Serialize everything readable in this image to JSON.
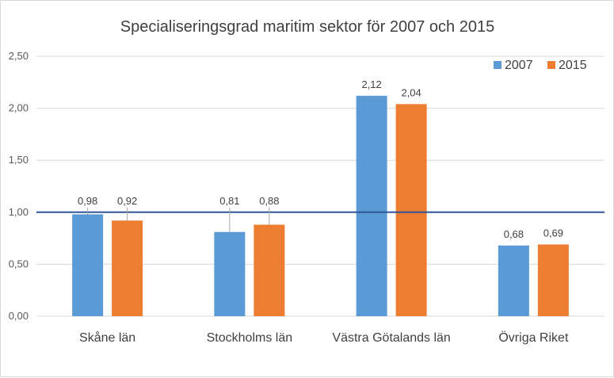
{
  "chart_data": {
    "type": "bar",
    "title": "Specialiseringsgrad maritim sektor för 2007 och 2015",
    "xlabel": "",
    "ylabel": "",
    "categories": [
      "Skåne län",
      "Stockholms län",
      "Västra Götalands län",
      "Övriga Riket"
    ],
    "series": [
      {
        "name": "2007",
        "color": "#5b9bd5",
        "values": [
          0.98,
          0.81,
          2.12,
          0.68
        ],
        "labels": [
          "0,98",
          "0,81",
          "2,12",
          "0,68"
        ]
      },
      {
        "name": "2015",
        "color": "#ed7d31",
        "values": [
          0.92,
          0.88,
          2.04,
          0.69
        ],
        "labels": [
          "0,92",
          "0,88",
          "2,04",
          "0,69"
        ]
      }
    ],
    "ylim": [
      0,
      2.5
    ],
    "yticks": [
      0,
      0.5,
      1.0,
      1.5,
      2.0,
      2.5
    ],
    "ytick_labels": [
      "0,00",
      "0,50",
      "1,00",
      "1,50",
      "2,00",
      "2,50"
    ],
    "reference_line": {
      "value": 1.0,
      "color": "#2f5597"
    },
    "grid": true,
    "legend_position": "top-right"
  }
}
